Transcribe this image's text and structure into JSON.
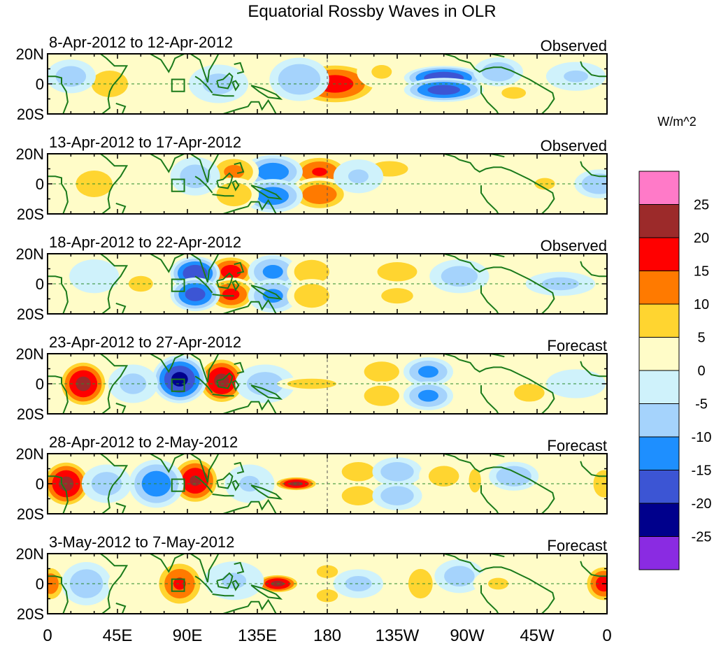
{
  "chart_data": {
    "type": "heatmap",
    "title": "Equatorial Rossby Waves in OLR",
    "units_label": "W/m^2",
    "x_tick_labels": [
      "0",
      "45E",
      "90E",
      "135E",
      "180",
      "135W",
      "90W",
      "45W",
      "0"
    ],
    "x_range_deg": [
      0,
      360
    ],
    "y_tick_labels": [
      "20N",
      "0",
      "20S"
    ],
    "y_range_deg": [
      -20,
      20
    ],
    "colorbar": {
      "levels": [
        -25,
        -20,
        -15,
        -10,
        -5,
        0,
        5,
        10,
        15,
        20,
        25
      ],
      "level_labels": [
        "25",
        "20",
        "15",
        "10",
        "5",
        "0",
        "-5",
        "-10",
        "-15",
        "-20",
        "-25"
      ],
      "colors_top_to_bottom": [
        "#ff7ac8",
        "#9c2a2a",
        "#ff0000",
        "#ff7a00",
        "#ffd530",
        "#fffcc8",
        "#cff2fb",
        "#a5d3fc",
        "#1e8fff",
        "#3c55d4",
        "#00008c",
        "#8a2be2"
      ]
    },
    "panels": [
      {
        "date_label": "8-Apr-2012 to 12-Apr-2012",
        "kind": "Observed",
        "anomalies": [
          {
            "lon": 185,
            "lat": 0,
            "value": 18,
            "lon_w": 18,
            "lat_w": 9
          },
          {
            "lon": 215,
            "lat": 8,
            "value": 6,
            "lon_w": 10,
            "lat_w": 7
          },
          {
            "lon": 255,
            "lat": 4,
            "value": -20,
            "lon_w": 16,
            "lat_w": 5
          },
          {
            "lon": 255,
            "lat": -4,
            "value": -18,
            "lon_w": 16,
            "lat_w": 5
          },
          {
            "lon": 162,
            "lat": 3,
            "value": -10,
            "lon_w": 12,
            "lat_w": 9
          },
          {
            "lon": 40,
            "lat": 0,
            "value": 8,
            "lon_w": 12,
            "lat_w": 9
          },
          {
            "lon": 15,
            "lat": 5,
            "value": -8,
            "lon_w": 10,
            "lat_w": 7
          },
          {
            "lon": 80,
            "lat": 10,
            "value": 5,
            "lon_w": 15,
            "lat_w": 6
          },
          {
            "lon": 110,
            "lat": 0,
            "value": -7,
            "lon_w": 12,
            "lat_w": 8
          },
          {
            "lon": 300,
            "lat": -6,
            "value": 6,
            "lon_w": 12,
            "lat_w": 6
          },
          {
            "lon": 340,
            "lat": 5,
            "value": -6,
            "lon_w": 12,
            "lat_w": 6
          },
          {
            "lon": 290,
            "lat": 8,
            "value": -9,
            "lon_w": 10,
            "lat_w": 6
          }
        ]
      },
      {
        "date_label": "13-Apr-2012 to 17-Apr-2012",
        "kind": "Observed",
        "anomalies": [
          {
            "lon": 175,
            "lat": 8,
            "value": 16,
            "lon_w": 12,
            "lat_w": 7
          },
          {
            "lon": 175,
            "lat": -7,
            "value": 15,
            "lon_w": 12,
            "lat_w": 7
          },
          {
            "lon": 145,
            "lat": 8,
            "value": -14,
            "lon_w": 12,
            "lat_w": 7
          },
          {
            "lon": 145,
            "lat": -8,
            "value": -14,
            "lon_w": 12,
            "lat_w": 7
          },
          {
            "lon": 120,
            "lat": 8,
            "value": 12,
            "lon_w": 10,
            "lat_w": 7
          },
          {
            "lon": 120,
            "lat": -7,
            "value": 10,
            "lon_w": 10,
            "lat_w": 7
          },
          {
            "lon": 95,
            "lat": 5,
            "value": -8,
            "lon_w": 10,
            "lat_w": 8
          },
          {
            "lon": 30,
            "lat": 0,
            "value": 8,
            "lon_w": 12,
            "lat_w": 9
          },
          {
            "lon": 220,
            "lat": 10,
            "value": 7,
            "lon_w": 14,
            "lat_w": 6
          },
          {
            "lon": 240,
            "lat": -8,
            "value": 5,
            "lon_w": 12,
            "lat_w": 6
          },
          {
            "lon": 200,
            "lat": 5,
            "value": -6,
            "lon_w": 10,
            "lat_w": 7
          },
          {
            "lon": 355,
            "lat": 0,
            "value": -10,
            "lon_w": 10,
            "lat_w": 6
          },
          {
            "lon": 320,
            "lat": 0,
            "value": 6,
            "lon_w": 10,
            "lat_w": 6
          }
        ]
      },
      {
        "date_label": "18-Apr-2012 to 22-Apr-2012",
        "kind": "Observed",
        "anomalies": [
          {
            "lon": 118,
            "lat": 8,
            "value": 18,
            "lon_w": 10,
            "lat_w": 7
          },
          {
            "lon": 118,
            "lat": -7,
            "value": 17,
            "lon_w": 10,
            "lat_w": 7
          },
          {
            "lon": 95,
            "lat": 7,
            "value": -20,
            "lon_w": 10,
            "lat_w": 7
          },
          {
            "lon": 95,
            "lat": -7,
            "value": -18,
            "lon_w": 10,
            "lat_w": 7
          },
          {
            "lon": 145,
            "lat": 8,
            "value": -12,
            "lon_w": 10,
            "lat_w": 7
          },
          {
            "lon": 145,
            "lat": -8,
            "value": -12,
            "lon_w": 10,
            "lat_w": 7
          },
          {
            "lon": 170,
            "lat": 8,
            "value": 10,
            "lon_w": 10,
            "lat_w": 7
          },
          {
            "lon": 170,
            "lat": -8,
            "value": 10,
            "lon_w": 10,
            "lat_w": 7
          },
          {
            "lon": 225,
            "lat": 8,
            "value": 9,
            "lon_w": 12,
            "lat_w": 6
          },
          {
            "lon": 225,
            "lat": -8,
            "value": 7,
            "lon_w": 12,
            "lat_w": 6
          },
          {
            "lon": 265,
            "lat": 5,
            "value": -8,
            "lon_w": 12,
            "lat_w": 7
          },
          {
            "lon": 60,
            "lat": 0,
            "value": 6,
            "lon_w": 12,
            "lat_w": 8
          },
          {
            "lon": 30,
            "lat": 5,
            "value": -5,
            "lon_w": 10,
            "lat_w": 7
          },
          {
            "lon": 330,
            "lat": 0,
            "value": -7,
            "lon_w": 14,
            "lat_w": 5
          }
        ]
      },
      {
        "date_label": "23-Apr-2012 to 27-Apr-2012",
        "kind": "Forecast",
        "anomalies": [
          {
            "lon": 23,
            "lat": 0,
            "value": 22,
            "lon_w": 10,
            "lat_w": 10
          },
          {
            "lon": 112,
            "lat": 2,
            "value": 22,
            "lon_w": 10,
            "lat_w": 10
          },
          {
            "lon": 85,
            "lat": 3,
            "value": -22,
            "lon_w": 11,
            "lat_w": 10
          },
          {
            "lon": 55,
            "lat": 0,
            "value": -7,
            "lon_w": 10,
            "lat_w": 8
          },
          {
            "lon": 140,
            "lat": 0,
            "value": -8,
            "lon_w": 12,
            "lat_w": 8
          },
          {
            "lon": 170,
            "lat": 0,
            "value": 10,
            "lon_w": 14,
            "lat_w": 3
          },
          {
            "lon": 215,
            "lat": 8,
            "value": 10,
            "lon_w": 10,
            "lat_w": 6
          },
          {
            "lon": 215,
            "lat": -8,
            "value": 10,
            "lon_w": 10,
            "lat_w": 6
          },
          {
            "lon": 245,
            "lat": 8,
            "value": -12,
            "lon_w": 10,
            "lat_w": 6
          },
          {
            "lon": 245,
            "lat": -8,
            "value": -12,
            "lon_w": 10,
            "lat_w": 6
          },
          {
            "lon": 310,
            "lat": -6,
            "value": 8,
            "lon_w": 10,
            "lat_w": 6
          },
          {
            "lon": 280,
            "lat": 5,
            "value": 5,
            "lon_w": 10,
            "lat_w": 6
          },
          {
            "lon": 340,
            "lat": 0,
            "value": -5,
            "lon_w": 12,
            "lat_w": 6
          }
        ]
      },
      {
        "date_label": "28-Apr-2012 to 2-May-2012",
        "kind": "Forecast",
        "anomalies": [
          {
            "lon": 12,
            "lat": 0,
            "value": 22,
            "lon_w": 10,
            "lat_w": 10
          },
          {
            "lon": 95,
            "lat": 2,
            "value": 21,
            "lon_w": 10,
            "lat_w": 10
          },
          {
            "lon": 70,
            "lat": 0,
            "value": -14,
            "lon_w": 11,
            "lat_w": 10
          },
          {
            "lon": 38,
            "lat": 0,
            "value": -8,
            "lon_w": 10,
            "lat_w": 8
          },
          {
            "lon": 160,
            "lat": 0,
            "value": 22,
            "lon_w": 9,
            "lat_w": 3
          },
          {
            "lon": 200,
            "lat": 8,
            "value": 9,
            "lon_w": 10,
            "lat_w": 6
          },
          {
            "lon": 200,
            "lat": -8,
            "value": 9,
            "lon_w": 10,
            "lat_w": 6
          },
          {
            "lon": 225,
            "lat": 8,
            "value": -9,
            "lon_w": 10,
            "lat_w": 6
          },
          {
            "lon": 225,
            "lat": -8,
            "value": -9,
            "lon_w": 10,
            "lat_w": 6
          },
          {
            "lon": 255,
            "lat": 5,
            "value": 8,
            "lon_w": 10,
            "lat_w": 7
          },
          {
            "lon": 275,
            "lat": 2,
            "value": 6,
            "lon_w": 6,
            "lat_w": 12
          },
          {
            "lon": 300,
            "lat": 5,
            "value": -10,
            "lon_w": 10,
            "lat_w": 6
          },
          {
            "lon": 358,
            "lat": 0,
            "value": 10,
            "lon_w": 6,
            "lat_w": 8
          },
          {
            "lon": 130,
            "lat": 0,
            "value": -6,
            "lon_w": 10,
            "lat_w": 8
          }
        ]
      },
      {
        "date_label": "3-May-2012 to 7-May-2012",
        "kind": "Forecast",
        "anomalies": [
          {
            "lon": 85,
            "lat": 0,
            "value": 16,
            "lon_w": 10,
            "lat_w": 10
          },
          {
            "lon": 148,
            "lat": 0,
            "value": 22,
            "lon_w": 9,
            "lat_w": 4
          },
          {
            "lon": 2,
            "lat": 0,
            "value": 14,
            "lon_w": 6,
            "lat_w": 8
          },
          {
            "lon": 358,
            "lat": 0,
            "value": 18,
            "lon_w": 8,
            "lat_w": 8
          },
          {
            "lon": 25,
            "lat": 0,
            "value": -9,
            "lon_w": 10,
            "lat_w": 9
          },
          {
            "lon": 120,
            "lat": 2,
            "value": -6,
            "lon_w": 12,
            "lat_w": 8
          },
          {
            "lon": 180,
            "lat": 8,
            "value": 7,
            "lon_w": 8,
            "lat_w": 5
          },
          {
            "lon": 180,
            "lat": -8,
            "value": 7,
            "lon_w": 8,
            "lat_w": 5
          },
          {
            "lon": 200,
            "lat": 0,
            "value": -7,
            "lon_w": 10,
            "lat_w": 6
          },
          {
            "lon": 240,
            "lat": 0,
            "value": 8,
            "lon_w": 8,
            "lat_w": 10
          },
          {
            "lon": 265,
            "lat": 5,
            "value": -8,
            "lon_w": 10,
            "lat_w": 7
          },
          {
            "lon": 290,
            "lat": 0,
            "value": 6,
            "lon_w": 10,
            "lat_w": 6
          },
          {
            "lon": 55,
            "lat": 0,
            "value": 5,
            "lon_w": 10,
            "lat_w": 8
          }
        ]
      }
    ]
  }
}
